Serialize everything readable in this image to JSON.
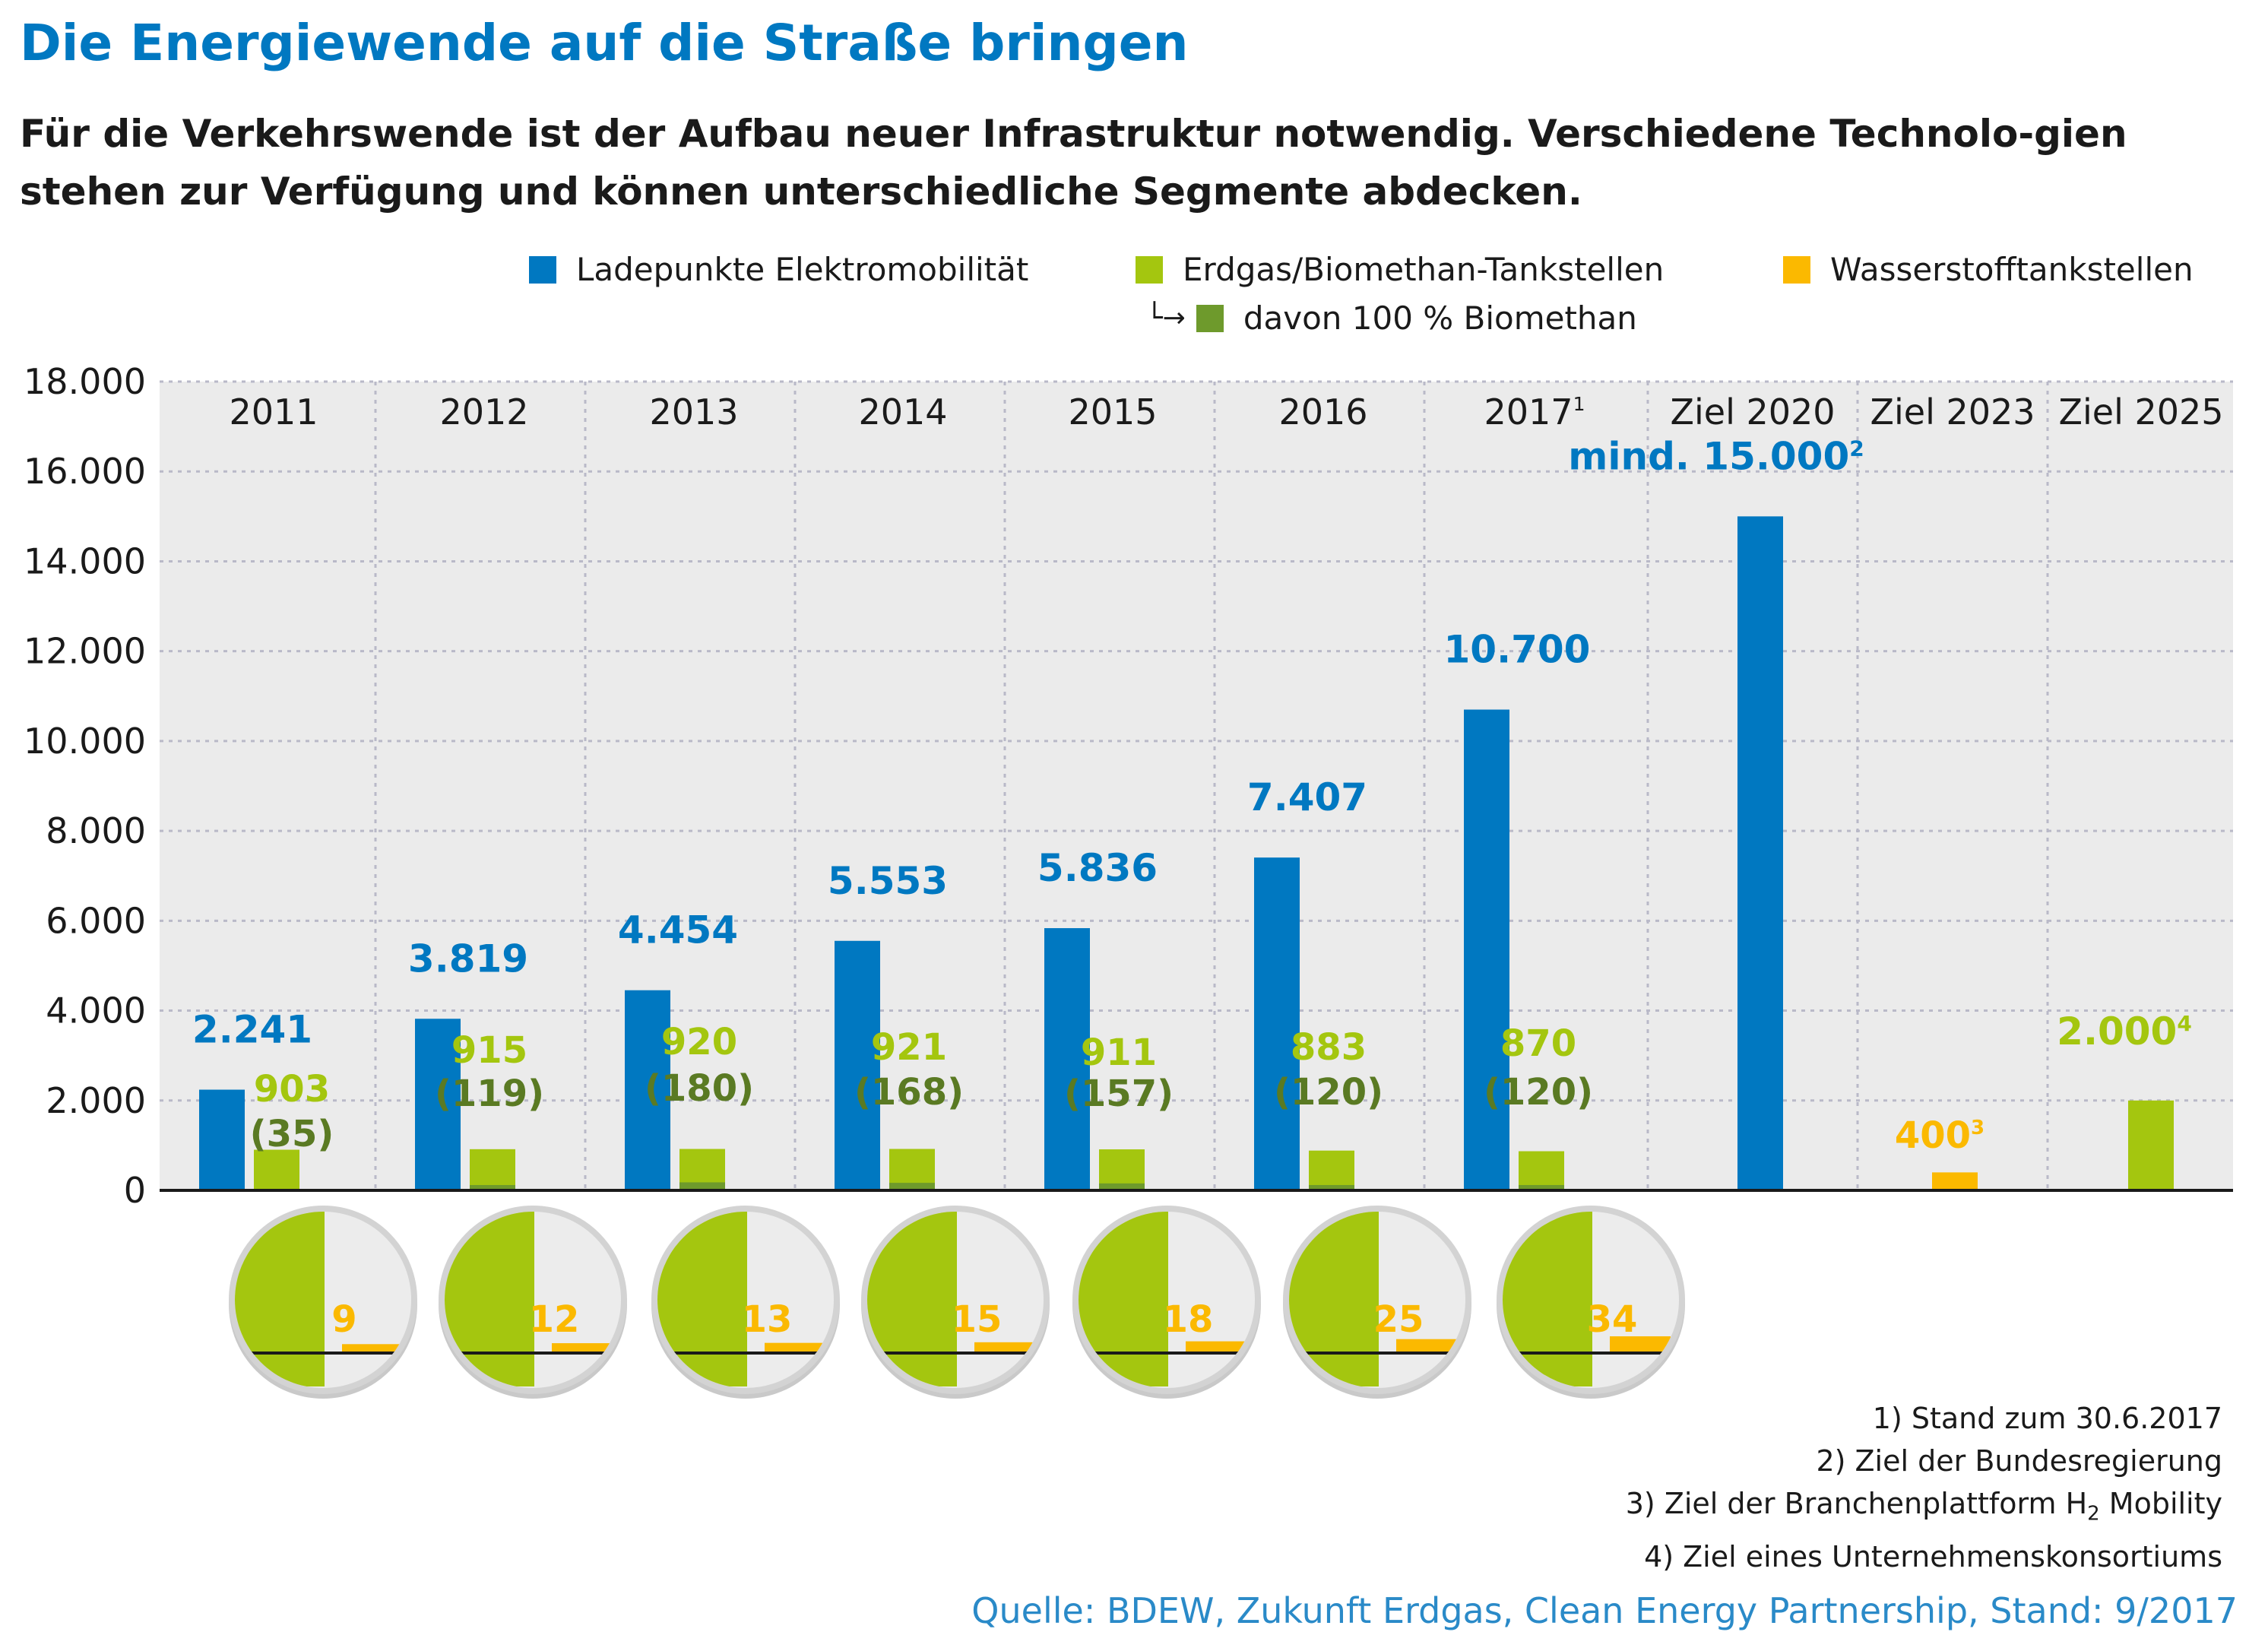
{
  "header": {
    "title": "Die Energiewende auf die Straße bringen",
    "subtitle": "Für die Verkehrswende ist der Aufbau neuer Infrastruktur notwendig. Verschiedene Technolo-gien stehen zur Verfügung und können unterschiedliche Segmente abdecken."
  },
  "colors": {
    "blue": "#0078c1",
    "green": "#a4c60f",
    "dark_green": "#6e9a2c",
    "orange": "#fbb900",
    "panel": "#ebebeb",
    "grid": "#b9b9c8"
  },
  "legend": {
    "electric": "Ladepunkte Elektromobilität",
    "gas": "Erdgas/Biomethan-Tankstellen",
    "hydrogen": "Wasserstofftankstellen",
    "biomethan": "davon 100 % Biomethan"
  },
  "chart_data": {
    "type": "bar",
    "categories": [
      "2011",
      "2012",
      "2013",
      "2014",
      "2015",
      "2016",
      "2017",
      "Ziel 2020",
      "Ziel 2023",
      "Ziel 2025"
    ],
    "category_superscripts": [
      "",
      "",
      "",
      "",
      "",
      "",
      "1",
      "",
      "",
      ""
    ],
    "ylim": [
      0,
      18000
    ],
    "yticks": [
      0,
      2000,
      4000,
      6000,
      8000,
      10000,
      12000,
      14000,
      16000,
      18000
    ],
    "ytick_labels": [
      "0",
      "2.000",
      "4.000",
      "6.000",
      "8.000",
      "10.000",
      "12.000",
      "14.000",
      "16.000",
      "18.000"
    ],
    "grid": true,
    "legend_position": "top-right",
    "series": [
      {
        "name": "Ladepunkte Elektromobilität",
        "values": [
          2241,
          3819,
          4454,
          5553,
          5836,
          7407,
          10700,
          15000,
          null,
          null
        ],
        "labels": [
          "2.241",
          "3.819",
          "4.454",
          "5.553",
          "5.836",
          "7.407",
          "10.700",
          "mind. 15.000",
          "",
          ""
        ],
        "label_superscripts": [
          "",
          "",
          "",
          "",
          "",
          "",
          "",
          "2",
          "",
          ""
        ]
      },
      {
        "name": "Erdgas/Biomethan-Tankstellen",
        "values": [
          903,
          915,
          920,
          921,
          911,
          883,
          870,
          null,
          null,
          2000
        ],
        "labels": [
          "903",
          "915",
          "920",
          "921",
          "911",
          "883",
          "870",
          "",
          "",
          "2.000"
        ],
        "label_superscripts": [
          "",
          "",
          "",
          "",
          "",
          "",
          "",
          "",
          "",
          "4"
        ]
      },
      {
        "name": "davon 100 % Biomethan",
        "values": [
          35,
          119,
          180,
          168,
          157,
          120,
          120,
          null,
          null,
          null
        ],
        "labels": [
          "(35)",
          "(119)",
          "(180)",
          "(168)",
          "(157)",
          "(120)",
          "(120)",
          "",
          "",
          ""
        ]
      },
      {
        "name": "Wasserstofftankstellen",
        "values": [
          9,
          12,
          13,
          15,
          18,
          25,
          34,
          null,
          400,
          null
        ],
        "labels": [
          "9",
          "12",
          "13",
          "15",
          "18",
          "25",
          "34",
          "",
          "400",
          ""
        ],
        "label_superscripts": [
          "",
          "",
          "",
          "",
          "",
          "",
          "",
          "",
          "3",
          ""
        ]
      }
    ]
  },
  "footnotes": [
    "1) Stand zum 30.6.2017",
    "2) Ziel der Bundesregierung",
    "3) Ziel der Branchenplattform H",
    "2",
    " Mobility",
    "4) Ziel eines Unternehmenskonsortiums"
  ],
  "source": "Quelle: BDEW, Zukunft Erdgas, Clean Energy Partnership, Stand: 9/2017"
}
